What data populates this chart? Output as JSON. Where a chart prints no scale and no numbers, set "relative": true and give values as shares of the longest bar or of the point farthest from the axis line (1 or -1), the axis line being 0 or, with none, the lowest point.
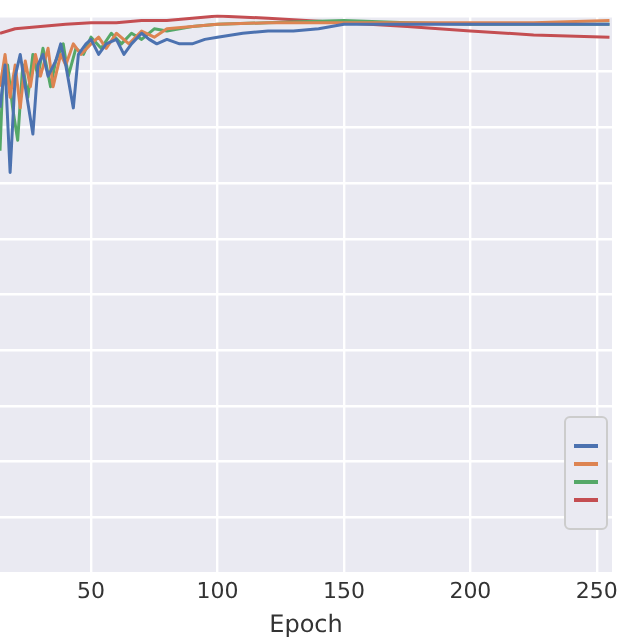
{
  "chart_data": {
    "type": "line",
    "xlabel": "Epoch",
    "relative": true,
    "grid": true,
    "marker": "none",
    "line_style": "solid",
    "xlim": [
      14,
      256
    ],
    "xticks": [
      50,
      100,
      150,
      200,
      250
    ],
    "series": [
      {
        "color": "#4c72b0",
        "x": [
          14,
          16,
          18,
          20,
          22,
          24,
          27,
          29,
          31,
          33,
          36,
          38,
          40,
          43,
          45,
          48,
          50,
          53,
          56,
          60,
          63,
          66,
          70,
          73,
          76,
          80,
          85,
          90,
          95,
          100,
          110,
          120,
          130,
          140,
          150,
          175,
          200,
          225,
          255
        ],
        "values": [
          0.835,
          0.912,
          0.719,
          0.892,
          0.931,
          0.873,
          0.788,
          0.912,
          0.931,
          0.892,
          0.919,
          0.95,
          0.912,
          0.835,
          0.931,
          0.95,
          0.958,
          0.931,
          0.95,
          0.958,
          0.931,
          0.95,
          0.969,
          0.958,
          0.95,
          0.958,
          0.95,
          0.95,
          0.958,
          0.962,
          0.969,
          0.973,
          0.973,
          0.977,
          0.985,
          0.985,
          0.985,
          0.985,
          0.985
        ]
      },
      {
        "color": "#dd8452",
        "x": [
          14,
          16,
          18,
          20,
          22,
          24,
          26,
          28,
          30,
          33,
          35,
          38,
          40,
          43,
          46,
          50,
          53,
          56,
          60,
          65,
          70,
          75,
          80,
          90,
          100,
          120,
          150,
          175,
          200,
          225,
          255
        ],
        "values": [
          0.873,
          0.931,
          0.854,
          0.912,
          0.835,
          0.919,
          0.873,
          0.931,
          0.892,
          0.942,
          0.873,
          0.931,
          0.912,
          0.95,
          0.931,
          0.95,
          0.962,
          0.942,
          0.969,
          0.95,
          0.973,
          0.962,
          0.977,
          0.981,
          0.985,
          0.988,
          0.988,
          0.988,
          0.988,
          0.988,
          0.992
        ]
      },
      {
        "color": "#55a868",
        "x": [
          14,
          15,
          17,
          19,
          21,
          23,
          25,
          27,
          29,
          31,
          34,
          36,
          39,
          41,
          44,
          47,
          50,
          54,
          58,
          62,
          66,
          70,
          75,
          80,
          90,
          100,
          120,
          150,
          175,
          200,
          225,
          255
        ],
        "values": [
          0.758,
          0.873,
          0.912,
          0.835,
          0.777,
          0.912,
          0.854,
          0.931,
          0.892,
          0.942,
          0.873,
          0.919,
          0.95,
          0.892,
          0.942,
          0.931,
          0.962,
          0.942,
          0.969,
          0.95,
          0.969,
          0.958,
          0.977,
          0.973,
          0.981,
          0.985,
          0.988,
          0.992,
          0.988,
          0.985,
          0.985,
          0.985
        ]
      },
      {
        "color": "#c44e52",
        "x": [
          14,
          20,
          30,
          40,
          50,
          60,
          70,
          80,
          90,
          100,
          120,
          150,
          175,
          200,
          225,
          255
        ],
        "values": [
          0.969,
          0.977,
          0.981,
          0.985,
          0.988,
          0.988,
          0.992,
          0.992,
          0.996,
          1.0,
          0.996,
          0.988,
          0.981,
          0.973,
          0.966,
          0.962
        ]
      }
    ]
  }
}
